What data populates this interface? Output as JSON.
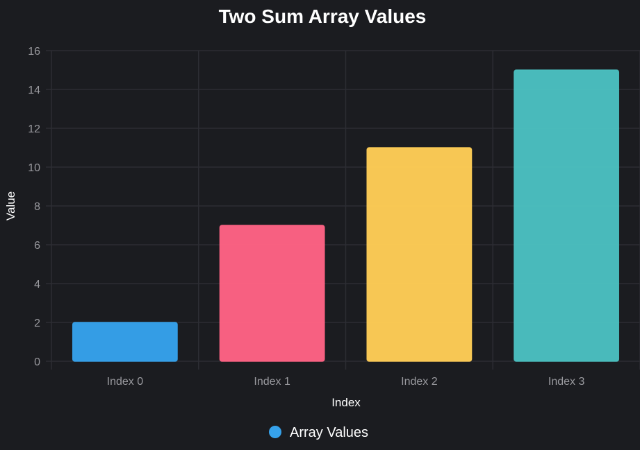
{
  "chart_data": {
    "type": "bar",
    "title": "Two Sum Array Values",
    "xlabel": "Index",
    "ylabel": "Value",
    "categories": [
      "Index 0",
      "Index 1",
      "Index 2",
      "Index 3"
    ],
    "series": [
      {
        "name": "Array Values",
        "values": [
          2,
          7,
          11,
          15
        ],
        "colors": [
          "#36a2eb",
          "#ff6384",
          "#ffcd56",
          "#4bc0c0"
        ]
      }
    ],
    "ylim": [
      0,
      16
    ],
    "yticks": [
      "0",
      "2",
      "4",
      "6",
      "8",
      "10",
      "12",
      "14",
      "16"
    ],
    "grid": true,
    "legend_position": "bottom"
  },
  "colors": {
    "background": "#1b1c20",
    "grid": "#2c2d33",
    "tick_text": "#9a9a9f",
    "title_text": "#ffffff",
    "legend_marker": "#36a2eb"
  }
}
